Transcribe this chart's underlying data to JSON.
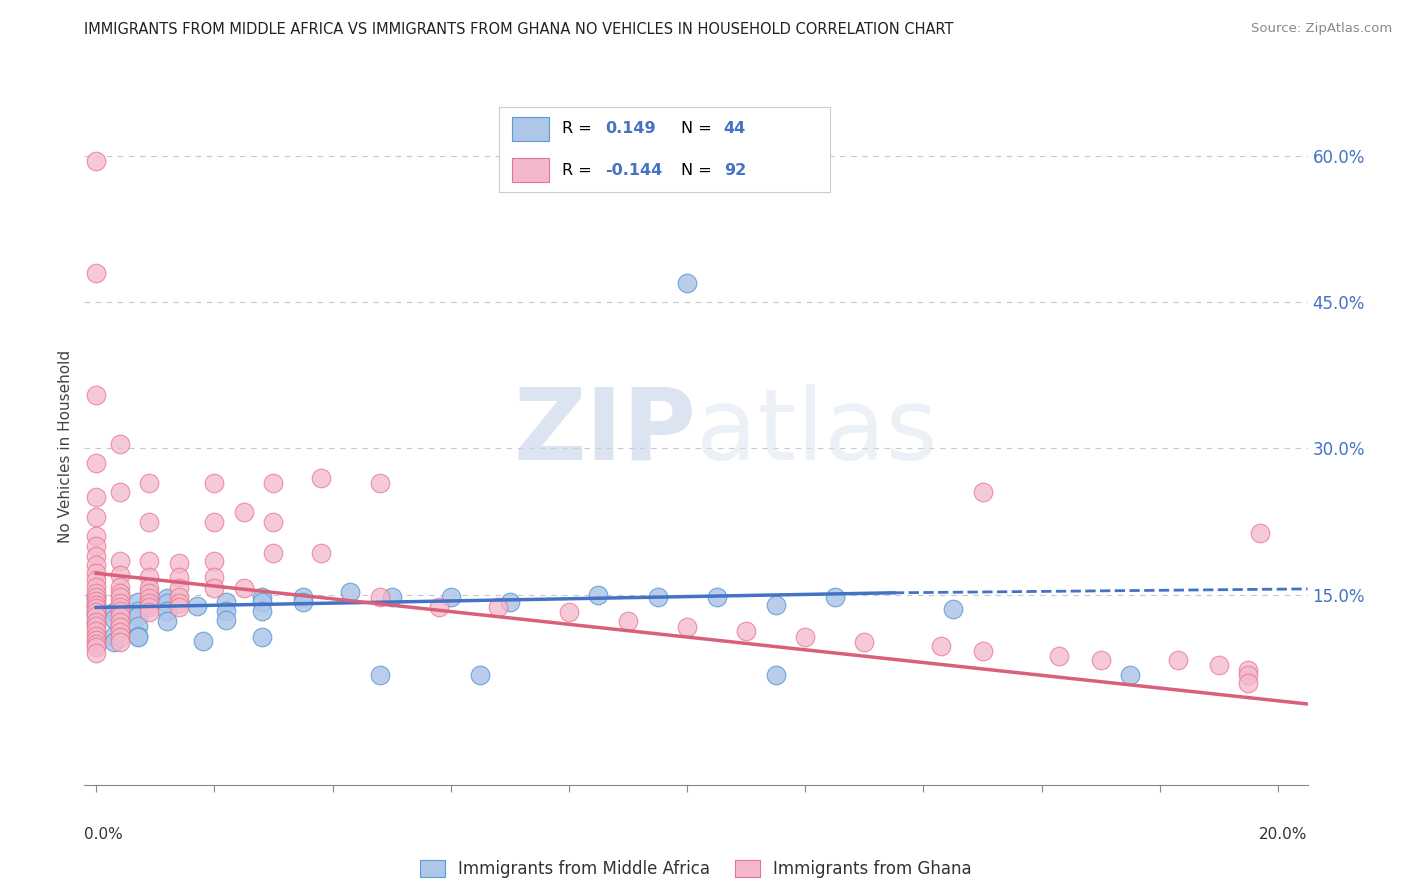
{
  "title": "IMMIGRANTS FROM MIDDLE AFRICA VS IMMIGRANTS FROM GHANA NO VEHICLES IN HOUSEHOLD CORRELATION CHART",
  "source": "Source: ZipAtlas.com",
  "ylabel": "No Vehicles in Household",
  "right_ytick_labels": [
    "60.0%",
    "45.0%",
    "30.0%",
    "15.0%"
  ],
  "right_ytick_values": [
    0.6,
    0.45,
    0.3,
    0.15
  ],
  "xlim": [
    -0.002,
    0.205
  ],
  "ylim": [
    -0.045,
    0.65
  ],
  "r_blue": 0.149,
  "n_blue": 44,
  "r_pink": -0.144,
  "n_pink": 92,
  "blue_fill_color": "#aec6e8",
  "pink_fill_color": "#f4b8cc",
  "blue_edge_color": "#5b9bd5",
  "pink_edge_color": "#e8748a",
  "blue_line_color": "#4472c4",
  "pink_line_color": "#d95f7a",
  "legend_r_color": "#4472c4",
  "watermark_zip": "ZIP",
  "watermark_atlas": "atlas",
  "legend_label_blue": "Immigrants from Middle Africa",
  "legend_label_pink": "Immigrants from Ghana",
  "blue_scatter": [
    [
      0.0,
      0.148
    ],
    [
      0.0,
      0.14
    ],
    [
      0.0,
      0.13
    ],
    [
      0.0,
      0.122
    ],
    [
      0.003,
      0.132
    ],
    [
      0.003,
      0.125
    ],
    [
      0.007,
      0.143
    ],
    [
      0.007,
      0.133
    ],
    [
      0.007,
      0.128
    ],
    [
      0.007,
      0.118
    ],
    [
      0.007,
      0.108
    ],
    [
      0.012,
      0.147
    ],
    [
      0.012,
      0.142
    ],
    [
      0.012,
      0.133
    ],
    [
      0.012,
      0.123
    ],
    [
      0.017,
      0.138
    ],
    [
      0.022,
      0.143
    ],
    [
      0.022,
      0.133
    ],
    [
      0.022,
      0.124
    ],
    [
      0.028,
      0.148
    ],
    [
      0.028,
      0.143
    ],
    [
      0.028,
      0.133
    ],
    [
      0.035,
      0.148
    ],
    [
      0.035,
      0.143
    ],
    [
      0.043,
      0.153
    ],
    [
      0.05,
      0.148
    ],
    [
      0.06,
      0.148
    ],
    [
      0.07,
      0.143
    ],
    [
      0.085,
      0.15
    ],
    [
      0.095,
      0.148
    ],
    [
      0.105,
      0.148
    ],
    [
      0.115,
      0.14
    ],
    [
      0.125,
      0.148
    ],
    [
      0.1,
      0.47
    ],
    [
      0.003,
      0.108
    ],
    [
      0.003,
      0.102
    ],
    [
      0.007,
      0.107
    ],
    [
      0.018,
      0.103
    ],
    [
      0.028,
      0.107
    ],
    [
      0.048,
      0.068
    ],
    [
      0.065,
      0.068
    ],
    [
      0.115,
      0.068
    ],
    [
      0.145,
      0.135
    ],
    [
      0.175,
      0.068
    ]
  ],
  "pink_scatter": [
    [
      0.0,
      0.595
    ],
    [
      0.0,
      0.48
    ],
    [
      0.0,
      0.355
    ],
    [
      0.0,
      0.285
    ],
    [
      0.0,
      0.25
    ],
    [
      0.0,
      0.23
    ],
    [
      0.0,
      0.21
    ],
    [
      0.0,
      0.2
    ],
    [
      0.0,
      0.19
    ],
    [
      0.0,
      0.18
    ],
    [
      0.0,
      0.172
    ],
    [
      0.0,
      0.165
    ],
    [
      0.0,
      0.158
    ],
    [
      0.0,
      0.152
    ],
    [
      0.0,
      0.148
    ],
    [
      0.0,
      0.144
    ],
    [
      0.0,
      0.14
    ],
    [
      0.0,
      0.136
    ],
    [
      0.0,
      0.132
    ],
    [
      0.0,
      0.128
    ],
    [
      0.0,
      0.122
    ],
    [
      0.0,
      0.118
    ],
    [
      0.0,
      0.113
    ],
    [
      0.0,
      0.108
    ],
    [
      0.0,
      0.104
    ],
    [
      0.0,
      0.1
    ],
    [
      0.0,
      0.096
    ],
    [
      0.0,
      0.09
    ],
    [
      0.004,
      0.305
    ],
    [
      0.004,
      0.255
    ],
    [
      0.004,
      0.185
    ],
    [
      0.004,
      0.17
    ],
    [
      0.004,
      0.158
    ],
    [
      0.004,
      0.152
    ],
    [
      0.004,
      0.148
    ],
    [
      0.004,
      0.142
    ],
    [
      0.004,
      0.137
    ],
    [
      0.004,
      0.133
    ],
    [
      0.004,
      0.128
    ],
    [
      0.004,
      0.122
    ],
    [
      0.004,
      0.117
    ],
    [
      0.004,
      0.112
    ],
    [
      0.004,
      0.107
    ],
    [
      0.004,
      0.102
    ],
    [
      0.009,
      0.265
    ],
    [
      0.009,
      0.225
    ],
    [
      0.009,
      0.185
    ],
    [
      0.009,
      0.168
    ],
    [
      0.009,
      0.157
    ],
    [
      0.009,
      0.152
    ],
    [
      0.009,
      0.147
    ],
    [
      0.009,
      0.142
    ],
    [
      0.009,
      0.137
    ],
    [
      0.009,
      0.132
    ],
    [
      0.014,
      0.183
    ],
    [
      0.014,
      0.168
    ],
    [
      0.014,
      0.157
    ],
    [
      0.014,
      0.148
    ],
    [
      0.014,
      0.142
    ],
    [
      0.014,
      0.137
    ],
    [
      0.02,
      0.265
    ],
    [
      0.02,
      0.225
    ],
    [
      0.02,
      0.185
    ],
    [
      0.02,
      0.168
    ],
    [
      0.02,
      0.157
    ],
    [
      0.025,
      0.235
    ],
    [
      0.025,
      0.157
    ],
    [
      0.03,
      0.265
    ],
    [
      0.03,
      0.225
    ],
    [
      0.03,
      0.193
    ],
    [
      0.038,
      0.27
    ],
    [
      0.038,
      0.193
    ],
    [
      0.048,
      0.265
    ],
    [
      0.048,
      0.148
    ],
    [
      0.058,
      0.137
    ],
    [
      0.068,
      0.137
    ],
    [
      0.08,
      0.132
    ],
    [
      0.09,
      0.123
    ],
    [
      0.1,
      0.117
    ],
    [
      0.11,
      0.113
    ],
    [
      0.12,
      0.107
    ],
    [
      0.13,
      0.102
    ],
    [
      0.143,
      0.097
    ],
    [
      0.15,
      0.092
    ],
    [
      0.15,
      0.255
    ],
    [
      0.163,
      0.087
    ],
    [
      0.17,
      0.083
    ],
    [
      0.183,
      0.083
    ],
    [
      0.19,
      0.078
    ],
    [
      0.195,
      0.073
    ],
    [
      0.195,
      0.068
    ],
    [
      0.195,
      0.06
    ],
    [
      0.197,
      0.213
    ]
  ],
  "blue_trend_x": [
    0.0,
    0.135,
    0.205
  ],
  "blue_trend_y": [
    0.137,
    0.152,
    0.156
  ],
  "blue_trend_solid_end": 0.135,
  "pink_trend_x": [
    0.0,
    0.205
  ],
  "pink_trend_y": [
    0.172,
    0.038
  ],
  "background_color": "#ffffff",
  "grid_color": "#c8c8c8"
}
